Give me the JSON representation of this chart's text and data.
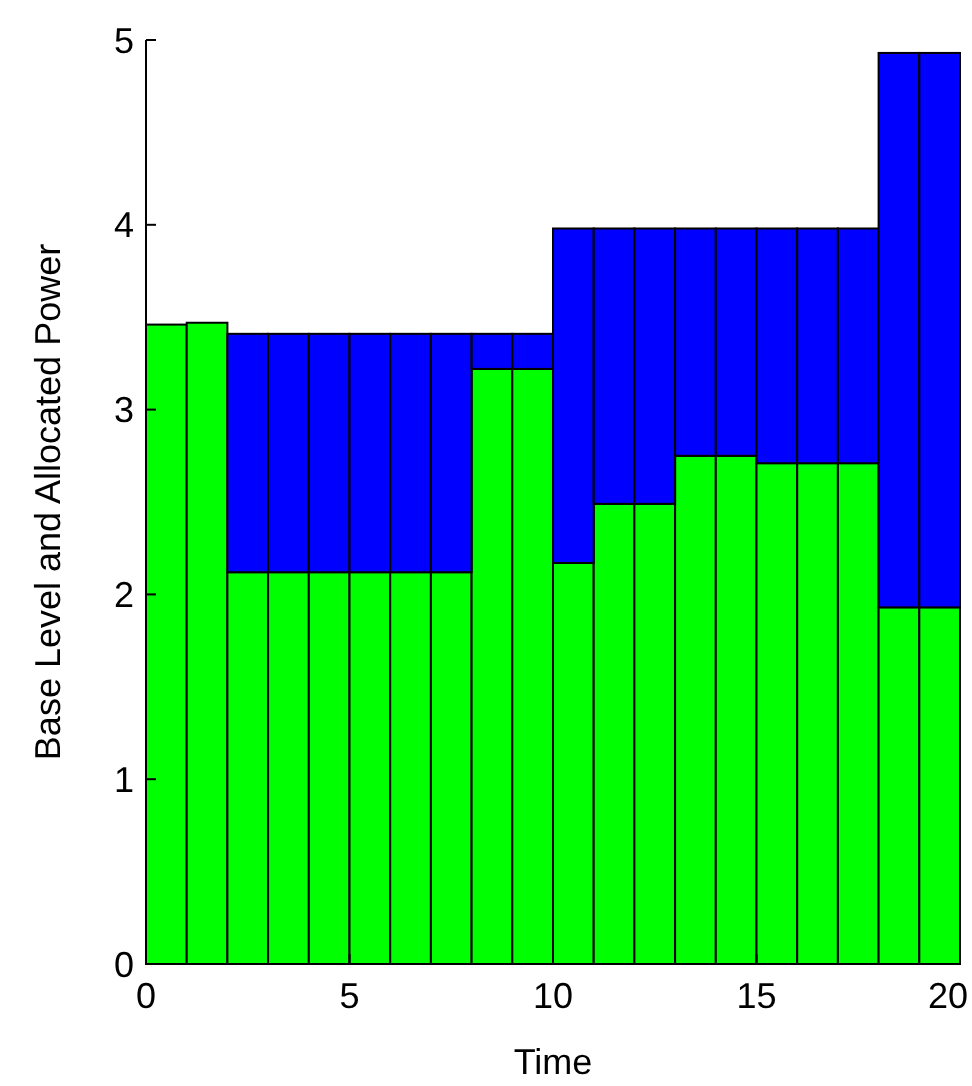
{
  "chart_data": {
    "type": "bar",
    "stacked": true,
    "xlabel": "Time",
    "ylabel": "Base Level and Allocated Power",
    "x": [
      0.5,
      1.5,
      2.5,
      3.5,
      4.5,
      5.5,
      6.5,
      7.5,
      8.5,
      9.5,
      10.5,
      11.5,
      12.5,
      13.5,
      14.5,
      15.5,
      16.5,
      17.5,
      18.5,
      19.5
    ],
    "series": [
      {
        "color": "#00ff00",
        "values": [
          3.46,
          3.47,
          2.12,
          2.12,
          2.12,
          2.12,
          2.12,
          2.12,
          3.22,
          3.22,
          2.17,
          2.49,
          2.49,
          2.75,
          2.75,
          2.71,
          2.71,
          2.71,
          1.93,
          1.93
        ]
      },
      {
        "color": "#0000ff",
        "values": [
          0,
          0,
          1.29,
          1.29,
          1.29,
          1.29,
          1.29,
          1.29,
          0.19,
          0.19,
          1.81,
          1.49,
          1.49,
          1.23,
          1.23,
          1.27,
          1.27,
          1.27,
          3.0,
          3.0
        ]
      }
    ],
    "xlim": [
      0,
      20
    ],
    "xticks": [
      0,
      5,
      10,
      15,
      20
    ],
    "ylim": [
      0,
      5
    ],
    "yticks": [
      0,
      1,
      2,
      3,
      4,
      5
    ],
    "grid": false
  }
}
